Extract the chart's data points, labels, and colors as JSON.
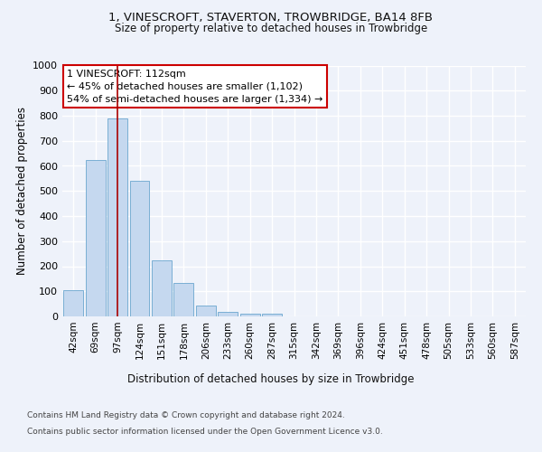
{
  "title1": "1, VINESCROFT, STAVERTON, TROWBRIDGE, BA14 8FB",
  "title2": "Size of property relative to detached houses in Trowbridge",
  "xlabel": "Distribution of detached houses by size in Trowbridge",
  "ylabel": "Number of detached properties",
  "footnote1": "Contains HM Land Registry data © Crown copyright and database right 2024.",
  "footnote2": "Contains public sector information licensed under the Open Government Licence v3.0.",
  "bar_labels": [
    "42sqm",
    "69sqm",
    "97sqm",
    "124sqm",
    "151sqm",
    "178sqm",
    "206sqm",
    "233sqm",
    "260sqm",
    "287sqm",
    "315sqm",
    "342sqm",
    "369sqm",
    "396sqm",
    "424sqm",
    "451sqm",
    "478sqm",
    "505sqm",
    "533sqm",
    "560sqm",
    "587sqm"
  ],
  "bar_values": [
    103,
    625,
    788,
    540,
    222,
    133,
    42,
    17,
    10,
    12,
    0,
    0,
    0,
    0,
    0,
    0,
    0,
    0,
    0,
    0,
    0
  ],
  "bar_color": "#c5d8ef",
  "bar_edge_color": "#7aafd4",
  "ylim": [
    0,
    1000
  ],
  "yticks": [
    0,
    100,
    200,
    300,
    400,
    500,
    600,
    700,
    800,
    900,
    1000
  ],
  "property_bin_index": 2,
  "vline_color": "#aa0000",
  "annotation_text": "1 VINESCROFT: 112sqm\n← 45% of detached houses are smaller (1,102)\n54% of semi-detached houses are larger (1,334) →",
  "annotation_box_color": "#ffffff",
  "annotation_box_edge_color": "#cc0000",
  "bg_color": "#eef2fa",
  "grid_color": "#ffffff"
}
